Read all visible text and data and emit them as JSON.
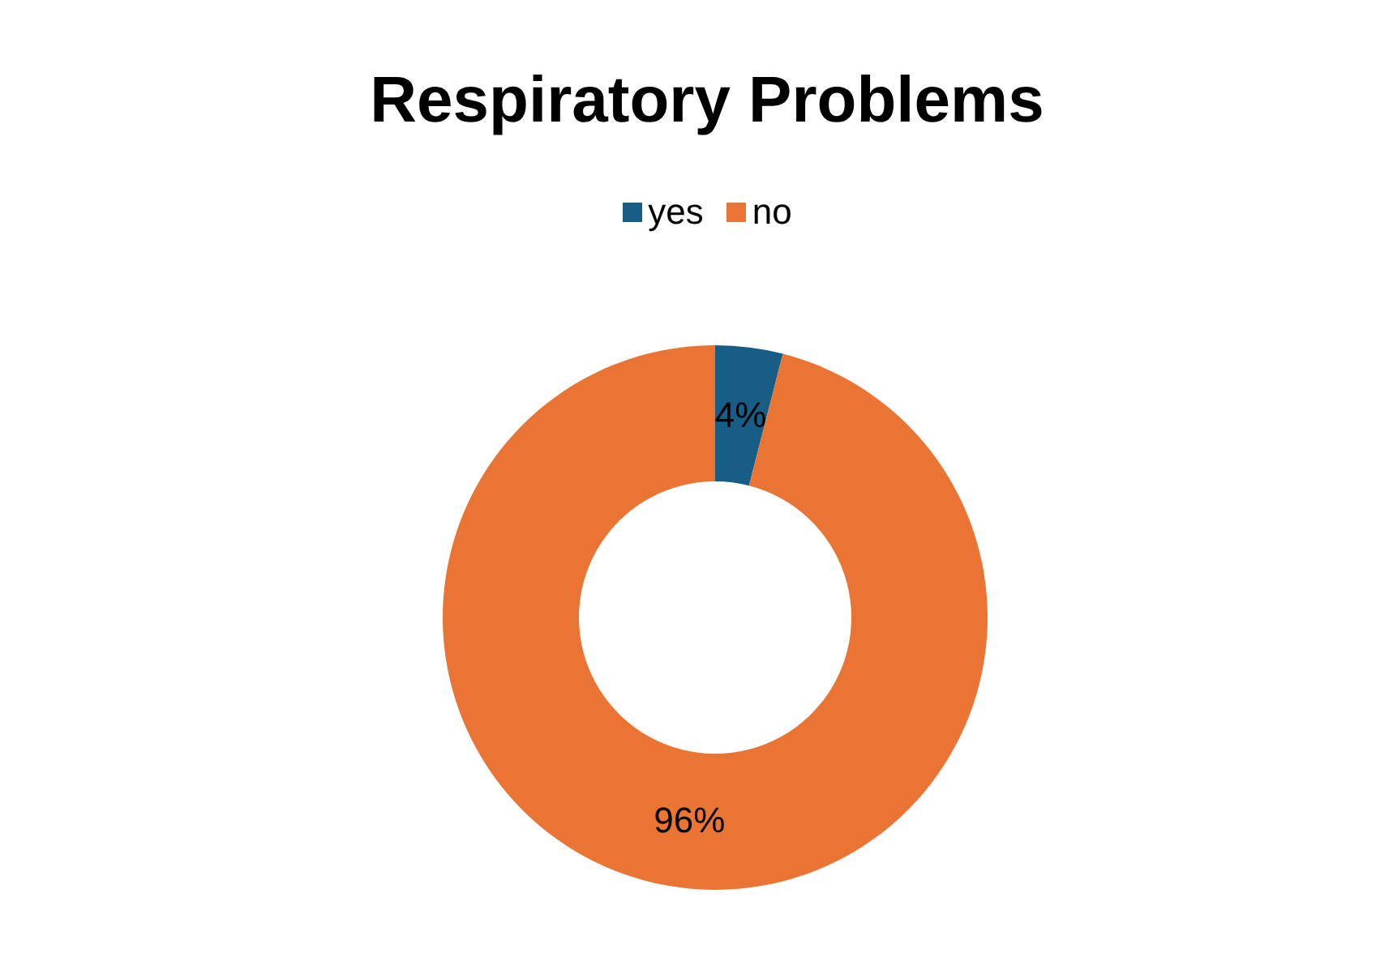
{
  "chart_data": {
    "type": "donut",
    "title": "Respiratory Problems",
    "categories": [
      "yes",
      "no"
    ],
    "values": [
      4,
      96
    ],
    "colors": [
      "#175d85",
      "#e97433"
    ],
    "value_labels": [
      "4%",
      "96%"
    ],
    "legend": "top"
  }
}
